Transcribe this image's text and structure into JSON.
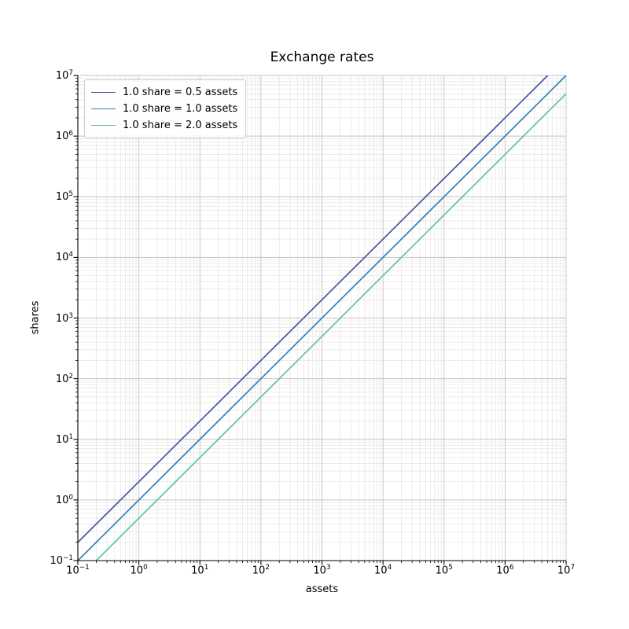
{
  "figure": {
    "background": "#ffffff",
    "text_color": "#000000",
    "spine_color": "#000000"
  },
  "chart_data": {
    "type": "line",
    "title": "Exchange rates",
    "xlabel": "assets",
    "ylabel": "shares",
    "xscale": "log",
    "yscale": "log",
    "xlim": [
      0.1,
      10000000
    ],
    "ylim": [
      0.1,
      10000000
    ],
    "x_tick_exponents": [
      -1,
      0,
      1,
      2,
      3,
      4,
      5,
      6,
      7
    ],
    "y_tick_exponents": [
      -1,
      0,
      1,
      2,
      3,
      4,
      5,
      6,
      7
    ],
    "grid": {
      "major": true,
      "minor": true,
      "major_color": "#c3c3c3",
      "minor_color": "#e7e7e7"
    },
    "legend_position": "upper left",
    "series": [
      {
        "name": "1.0 share = 0.5 assets",
        "assets_per_share": 0.5,
        "color": "#4b51a6",
        "x_endpoints": [
          0.1,
          5000000
        ],
        "y_endpoints": [
          0.2,
          10000000
        ]
      },
      {
        "name": "1.0 share = 1.0 assets",
        "assets_per_share": 1.0,
        "color": "#3181bd",
        "x_endpoints": [
          0.1,
          10000000
        ],
        "y_endpoints": [
          0.1,
          10000000
        ]
      },
      {
        "name": "1.0 share = 2.0 assets",
        "assets_per_share": 2.0,
        "color": "#5cc69a",
        "x_endpoints": [
          0.2,
          10000000
        ],
        "y_endpoints": [
          0.1,
          5000000
        ]
      }
    ]
  }
}
